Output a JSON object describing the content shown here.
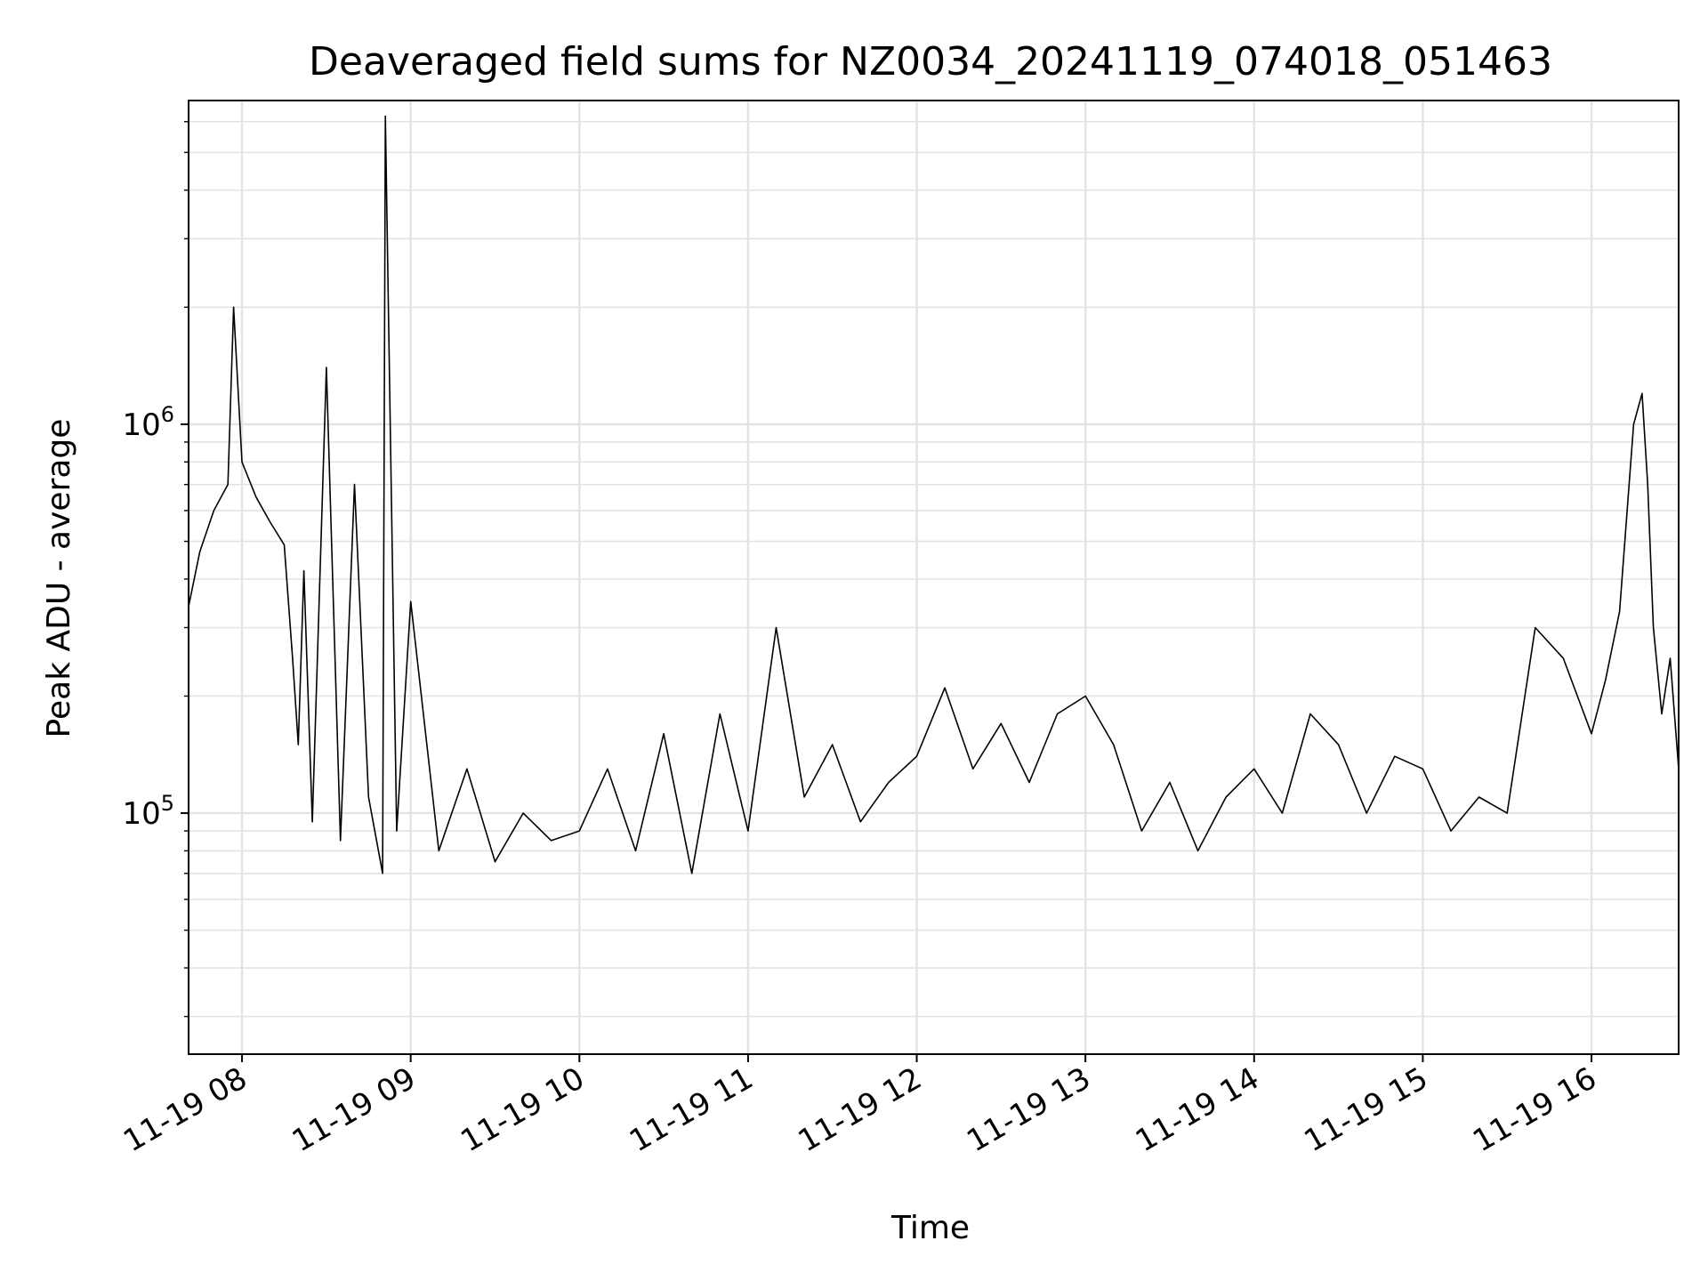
{
  "chart_data": {
    "type": "line",
    "title": "Deaveraged field sums for NZ0034_20241119_074018_051463",
    "xlabel": "Time",
    "ylabel": "Peak ADU - average",
    "yscale": "log",
    "grid": true,
    "xlim": [
      "2024-11-19 07:41",
      "2024-11-19 16:31"
    ],
    "ylim": [
      24000,
      6800000
    ],
    "x_ticks": [
      {
        "time": "2024-11-19 08:00",
        "label": "11-19 08"
      },
      {
        "time": "2024-11-19 09:00",
        "label": "11-19 09"
      },
      {
        "time": "2024-11-19 10:00",
        "label": "11-19 10"
      },
      {
        "time": "2024-11-19 11:00",
        "label": "11-19 11"
      },
      {
        "time": "2024-11-19 12:00",
        "label": "11-19 12"
      },
      {
        "time": "2024-11-19 13:00",
        "label": "11-19 13"
      },
      {
        "time": "2024-11-19 14:00",
        "label": "11-19 14"
      },
      {
        "time": "2024-11-19 15:00",
        "label": "11-19 15"
      },
      {
        "time": "2024-11-19 16:00",
        "label": "11-19 16"
      }
    ],
    "y_ticks": [
      {
        "value": 100000,
        "base": "10",
        "exp": "5"
      },
      {
        "value": 1000000,
        "base": "10",
        "exp": "6"
      }
    ],
    "line_color": "#000000",
    "series": [
      {
        "x": [
          "07:41",
          "07:45",
          "07:50",
          "07:55",
          "07:57",
          "08:00",
          "08:05",
          "08:10",
          "08:15",
          "08:18",
          "08:20",
          "08:22",
          "08:25",
          "08:30",
          "08:35",
          "08:40",
          "08:45",
          "08:50",
          "08:51",
          "08:55",
          "09:00",
          "09:10",
          "09:20",
          "09:30",
          "09:40",
          "09:50",
          "10:00",
          "10:10",
          "10:20",
          "10:30",
          "10:40",
          "10:50",
          "11:00",
          "11:10",
          "11:20",
          "11:30",
          "11:40",
          "11:50",
          "12:00",
          "12:10",
          "12:20",
          "12:30",
          "12:40",
          "12:50",
          "13:00",
          "13:10",
          "13:20",
          "13:30",
          "13:40",
          "13:50",
          "14:00",
          "14:10",
          "14:20",
          "14:30",
          "14:40",
          "14:50",
          "15:00",
          "15:10",
          "15:20",
          "15:30",
          "15:40",
          "15:50",
          "16:00",
          "16:05",
          "16:10",
          "16:15",
          "16:18",
          "16:20",
          "16:22",
          "16:25",
          "16:28",
          "16:31"
        ],
        "y": [
          340000,
          470000,
          600000,
          700000,
          2000000,
          800000,
          650000,
          560000,
          490000,
          250000,
          150000,
          420000,
          95000,
          1400000,
          85000,
          700000,
          110000,
          70000,
          6200000,
          90000,
          350000,
          80000,
          130000,
          75000,
          100000,
          85000,
          90000,
          130000,
          80000,
          160000,
          70000,
          180000,
          90000,
          300000,
          110000,
          150000,
          95000,
          120000,
          140000,
          210000,
          130000,
          170000,
          120000,
          180000,
          200000,
          150000,
          90000,
          120000,
          80000,
          110000,
          130000,
          100000,
          180000,
          150000,
          100000,
          140000,
          130000,
          90000,
          110000,
          100000,
          300000,
          250000,
          160000,
          220000,
          330000,
          1000000,
          1200000,
          700000,
          300000,
          180000,
          250000,
          130000
        ]
      }
    ]
  }
}
